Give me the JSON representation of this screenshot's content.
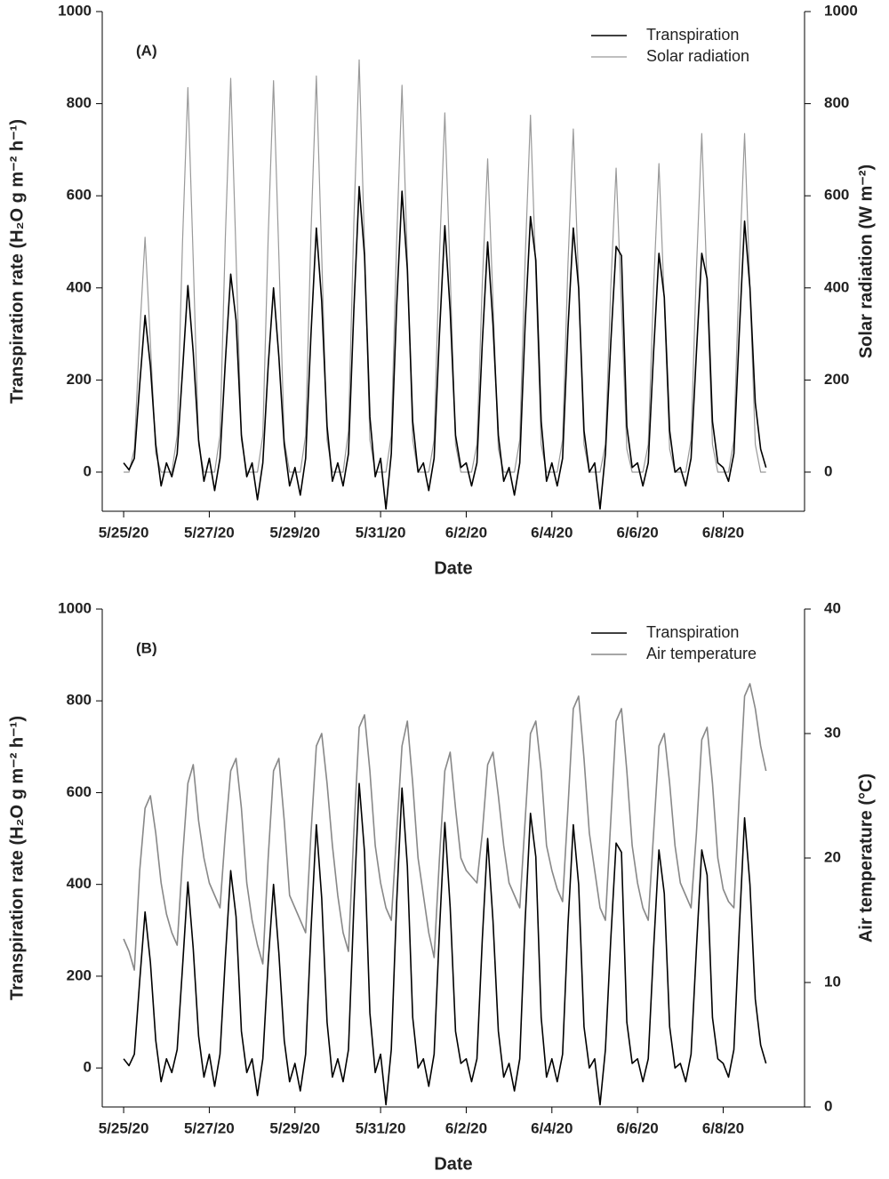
{
  "chart_data": [
    {
      "type": "line",
      "annotation": "(A)",
      "xlabel": "Date",
      "ylabel": "Transpiration rate (H₂O g m⁻² h⁻¹)",
      "y2label": "Solar radiation (W m⁻²)",
      "legend": "upper right",
      "xlim": [
        -0.5,
        15.9
      ],
      "ylim": [
        -85,
        1000
      ],
      "y2lim": [
        -85,
        1000
      ],
      "xticks": [
        {
          "value": 0,
          "label": "5/25/20"
        },
        {
          "value": 2,
          "label": "5/27/20"
        },
        {
          "value": 4,
          "label": "5/29/20"
        },
        {
          "value": 6,
          "label": "5/31/20"
        },
        {
          "value": 8,
          "label": "6/2/20"
        },
        {
          "value": 10,
          "label": "6/4/20"
        },
        {
          "value": 12,
          "label": "6/6/20"
        },
        {
          "value": 14,
          "label": "6/8/20"
        }
      ],
      "yticks": [
        0,
        200,
        400,
        600,
        800,
        1000
      ],
      "y2ticks": [
        0,
        200,
        400,
        600,
        800,
        1000
      ],
      "x": [
        0,
        0.125,
        0.25,
        0.375,
        0.5,
        0.625,
        0.75,
        0.875,
        1,
        1.125,
        1.25,
        1.375,
        1.5,
        1.625,
        1.75,
        1.875,
        2,
        2.125,
        2.25,
        2.375,
        2.5,
        2.625,
        2.75,
        2.875,
        3,
        3.125,
        3.25,
        3.375,
        3.5,
        3.625,
        3.75,
        3.875,
        4,
        4.125,
        4.25,
        4.375,
        4.5,
        4.625,
        4.75,
        4.875,
        5,
        5.125,
        5.25,
        5.375,
        5.5,
        5.625,
        5.75,
        5.875,
        6,
        6.125,
        6.25,
        6.375,
        6.5,
        6.625,
        6.75,
        6.875,
        7,
        7.125,
        7.25,
        7.375,
        7.5,
        7.625,
        7.75,
        7.875,
        8,
        8.125,
        8.25,
        8.375,
        8.5,
        8.625,
        8.75,
        8.875,
        9,
        9.125,
        9.25,
        9.375,
        9.5,
        9.625,
        9.75,
        9.875,
        10,
        10.125,
        10.25,
        10.375,
        10.5,
        10.625,
        10.75,
        10.875,
        11,
        11.125,
        11.25,
        11.375,
        11.5,
        11.625,
        11.75,
        11.875,
        12,
        12.125,
        12.25,
        12.375,
        12.5,
        12.625,
        12.75,
        12.875,
        13,
        13.125,
        13.25,
        13.375,
        13.5,
        13.625,
        13.75,
        13.875,
        14,
        14.125,
        14.25,
        14.375,
        14.5,
        14.625,
        14.75,
        14.875,
        15
      ],
      "series": [
        {
          "name": "Solar radiation",
          "color": "#999999",
          "width": 1.2,
          "axis": "y2",
          "values": [
            0,
            0,
            50,
            300,
            510,
            280,
            40,
            0,
            0,
            0,
            80,
            500,
            835,
            460,
            60,
            0,
            0,
            0,
            80,
            510,
            855,
            470,
            70,
            0,
            0,
            0,
            80,
            510,
            850,
            470,
            70,
            0,
            0,
            0,
            80,
            520,
            860,
            470,
            70,
            0,
            0,
            0,
            90,
            540,
            895,
            490,
            70,
            0,
            0,
            0,
            80,
            500,
            840,
            460,
            70,
            0,
            0,
            0,
            70,
            470,
            780,
            430,
            60,
            0,
            0,
            0,
            60,
            410,
            680,
            370,
            50,
            0,
            0,
            0,
            70,
            460,
            775,
            430,
            60,
            0,
            0,
            0,
            70,
            450,
            745,
            410,
            60,
            0,
            0,
            0,
            60,
            400,
            660,
            360,
            50,
            0,
            0,
            0,
            60,
            400,
            670,
            370,
            50,
            0,
            0,
            0,
            70,
            440,
            735,
            400,
            60,
            0,
            0,
            0,
            70,
            440,
            735,
            400,
            60,
            0,
            0
          ]
        },
        {
          "name": "Transpiration",
          "color": "#000000",
          "width": 1.6,
          "values": [
            20,
            5,
            30,
            190,
            340,
            230,
            60,
            -30,
            20,
            -10,
            40,
            220,
            405,
            260,
            70,
            -20,
            30,
            -40,
            30,
            240,
            430,
            330,
            80,
            -10,
            20,
            -60,
            20,
            230,
            400,
            250,
            60,
            -30,
            10,
            -50,
            30,
            300,
            530,
            370,
            100,
            -20,
            20,
            -30,
            40,
            350,
            620,
            470,
            120,
            -10,
            30,
            -80,
            40,
            360,
            610,
            440,
            110,
            0,
            20,
            -40,
            30,
            300,
            535,
            350,
            80,
            10,
            20,
            -30,
            20,
            280,
            500,
            320,
            80,
            -20,
            10,
            -50,
            20,
            320,
            555,
            460,
            110,
            -20,
            20,
            -30,
            30,
            310,
            530,
            400,
            90,
            0,
            20,
            -80,
            40,
            280,
            490,
            470,
            100,
            10,
            20,
            -30,
            20,
            260,
            475,
            380,
            90,
            0,
            10,
            -30,
            30,
            260,
            475,
            420,
            110,
            20,
            10,
            -20,
            40,
            300,
            545,
            400,
            150,
            50,
            10
          ]
        }
      ]
    },
    {
      "type": "line",
      "annotation": "(B)",
      "xlabel": "Date",
      "ylabel": "Transpiration rate (H₂O g m⁻² h⁻¹)",
      "y2label": "Air temperature (°C)",
      "legend": "upper right",
      "xlim": [
        -0.5,
        15.9
      ],
      "ylim": [
        -85,
        1000
      ],
      "y2lim": [
        0,
        40
      ],
      "xticks": [
        {
          "value": 0,
          "label": "5/25/20"
        },
        {
          "value": 2,
          "label": "5/27/20"
        },
        {
          "value": 4,
          "label": "5/29/20"
        },
        {
          "value": 6,
          "label": "5/31/20"
        },
        {
          "value": 8,
          "label": "6/2/20"
        },
        {
          "value": 10,
          "label": "6/4/20"
        },
        {
          "value": 12,
          "label": "6/6/20"
        },
        {
          "value": 14,
          "label": "6/8/20"
        }
      ],
      "yticks": [
        0,
        200,
        400,
        600,
        800,
        1000
      ],
      "y2ticks": [
        0,
        10,
        20,
        30,
        40
      ],
      "x": [
        0,
        0.125,
        0.25,
        0.375,
        0.5,
        0.625,
        0.75,
        0.875,
        1,
        1.125,
        1.25,
        1.375,
        1.5,
        1.625,
        1.75,
        1.875,
        2,
        2.125,
        2.25,
        2.375,
        2.5,
        2.625,
        2.75,
        2.875,
        3,
        3.125,
        3.25,
        3.375,
        3.5,
        3.625,
        3.75,
        3.875,
        4,
        4.125,
        4.25,
        4.375,
        4.5,
        4.625,
        4.75,
        4.875,
        5,
        5.125,
        5.25,
        5.375,
        5.5,
        5.625,
        5.75,
        5.875,
        6,
        6.125,
        6.25,
        6.375,
        6.5,
        6.625,
        6.75,
        6.875,
        7,
        7.125,
        7.25,
        7.375,
        7.5,
        7.625,
        7.75,
        7.875,
        8,
        8.125,
        8.25,
        8.375,
        8.5,
        8.625,
        8.75,
        8.875,
        9,
        9.125,
        9.25,
        9.375,
        9.5,
        9.625,
        9.75,
        9.875,
        10,
        10.125,
        10.25,
        10.375,
        10.5,
        10.625,
        10.75,
        10.875,
        11,
        11.125,
        11.25,
        11.375,
        11.5,
        11.625,
        11.75,
        11.875,
        12,
        12.125,
        12.25,
        12.375,
        12.5,
        12.625,
        12.75,
        12.875,
        13,
        13.125,
        13.25,
        13.375,
        13.5,
        13.625,
        13.75,
        13.875,
        14,
        14.125,
        14.25,
        14.375,
        14.5,
        14.625,
        14.75,
        14.875,
        15
      ],
      "series": [
        {
          "name": "Transpiration",
          "color": "#000000",
          "width": 1.6,
          "values": [
            20,
            5,
            30,
            190,
            340,
            230,
            60,
            -30,
            20,
            -10,
            40,
            220,
            405,
            260,
            70,
            -20,
            30,
            -40,
            30,
            240,
            430,
            330,
            80,
            -10,
            20,
            -60,
            20,
            230,
            400,
            250,
            60,
            -30,
            10,
            -50,
            30,
            300,
            530,
            370,
            100,
            -20,
            20,
            -30,
            40,
            350,
            620,
            470,
            120,
            -10,
            30,
            -80,
            40,
            360,
            610,
            440,
            110,
            0,
            20,
            -40,
            30,
            300,
            535,
            350,
            80,
            10,
            20,
            -30,
            20,
            280,
            500,
            320,
            80,
            -20,
            10,
            -50,
            20,
            320,
            555,
            460,
            110,
            -20,
            20,
            -30,
            30,
            310,
            530,
            400,
            90,
            0,
            20,
            -80,
            40,
            280,
            490,
            470,
            100,
            10,
            20,
            -30,
            20,
            260,
            475,
            380,
            90,
            0,
            10,
            -30,
            30,
            260,
            475,
            420,
            110,
            20,
            10,
            -20,
            40,
            300,
            545,
            400,
            150,
            50,
            10
          ]
        },
        {
          "name": "Air temperature",
          "color": "#888888",
          "width": 1.6,
          "axis": "y2",
          "values": [
            13.5,
            12.5,
            11,
            19,
            24,
            25,
            22,
            18,
            15.5,
            14,
            13,
            20,
            26,
            27.5,
            23,
            20,
            18,
            17,
            16,
            22,
            27,
            28,
            24,
            18,
            15,
            13,
            11.5,
            20,
            27,
            28,
            23,
            17,
            16,
            15,
            14,
            22,
            29,
            30,
            26,
            21,
            17,
            14,
            12.5,
            22,
            30.5,
            31.5,
            27,
            21,
            18,
            16,
            15,
            22,
            29,
            31,
            26,
            20,
            17,
            14,
            12,
            20,
            27,
            28.5,
            24,
            20,
            19,
            18.5,
            18,
            22,
            27.5,
            28.5,
            25,
            21,
            18,
            17,
            16,
            23,
            30,
            31,
            27,
            21,
            19,
            17.5,
            16.5,
            24,
            32,
            33,
            28,
            22,
            19,
            16,
            15,
            23,
            31,
            32,
            27,
            21,
            18,
            16,
            15,
            22,
            29,
            30,
            26,
            21,
            18,
            17,
            16,
            22,
            29.5,
            30.5,
            26,
            20,
            17.5,
            16.5,
            16,
            25,
            33,
            34,
            32,
            29,
            27
          ]
        }
      ]
    }
  ]
}
